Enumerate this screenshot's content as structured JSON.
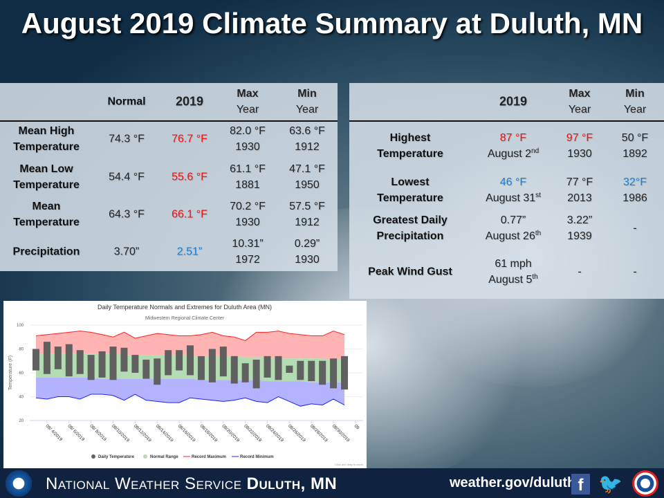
{
  "title": "August 2019 Climate Summary at Duluth, MN",
  "colors": {
    "record_high": "#f01010",
    "record_low": "#1a7fd6",
    "footer": "#0f2340"
  },
  "monthly_table": {
    "headers": {
      "normal": "Normal",
      "year": "2019",
      "max": "Max",
      "min": "Min",
      "year_sub": "Year"
    },
    "rows": [
      {
        "label1": "Mean High",
        "label2": "Temperature",
        "normal": "74.3 °F",
        "value": "76.7 °F",
        "value_color": "red",
        "max": "82.0 °F",
        "max_year": "1930",
        "min": "63.6 °F",
        "min_year": "1912"
      },
      {
        "label1": "Mean Low",
        "label2": "Temperature",
        "normal": "54.4 °F",
        "value": "55.6 °F",
        "value_color": "red",
        "max": "61.1 °F",
        "max_year": "1881",
        "min": "47.1 °F",
        "min_year": "1950"
      },
      {
        "label1": "Mean",
        "label2": "Temperature",
        "normal": "64.3 °F",
        "value": "66.1 °F",
        "value_color": "red",
        "max": "70.2 °F",
        "max_year": "1930",
        "min": "57.5 °F",
        "min_year": "1912"
      },
      {
        "label1": "Precipitation",
        "label2": "",
        "normal": "3.70”",
        "value": "2.51”",
        "value_color": "blue",
        "max": "10.31”",
        "max_year": "1972",
        "min": "0.29”",
        "min_year": "1930"
      }
    ]
  },
  "extremes_table": {
    "headers": {
      "year": "2019",
      "max": "Max",
      "min": "Min",
      "year_sub": "Year"
    },
    "rows": [
      {
        "label1": "Highest",
        "label2": "Temperature",
        "value": "87 °F",
        "date": "August 2",
        "sup": "nd",
        "max": "97 °F",
        "max_year": "1930",
        "min": "50 °F",
        "min_year": "1892"
      },
      {
        "label1": "Lowest",
        "label2": "Temperature",
        "value": "46 °F",
        "date": "August 31",
        "sup": "st",
        "max": "77 °F",
        "max_year": "2013",
        "min": "32°F",
        "min_year": "1986"
      },
      {
        "label1": "Greatest Daily",
        "label2": "Precipitation",
        "value": "0.77”",
        "date": "August 26",
        "sup": "th",
        "max": "3.22”",
        "max_year": "1939",
        "min": "-"
      },
      {
        "label1": "Peak Wind Gust",
        "value": "61 mph",
        "date": "August 5",
        "sup": "th",
        "max": "-",
        "min": "-"
      }
    ]
  },
  "chart_data": {
    "type": "bar",
    "title": "Daily Temperature Normals and Extremes for Duluth Area (MN)",
    "subtitle": "Midwestern Regional Climate Center",
    "ylabel": "Temperature (F)",
    "ylim": [
      20,
      100
    ],
    "yticks": [
      20,
      40,
      60,
      80,
      100
    ],
    "xticks": [
      "08/ 4/2019",
      "08/ 6/2019",
      "08/ 8/2019",
      "08/10/2019",
      "08/12/2019",
      "08/14/2019",
      "08/16/2019",
      "08/18/2019",
      "08/20/2019",
      "08/22/2019",
      "08/24/2019",
      "08/26/2019",
      "08/28/2019",
      "08/30/2019",
      "09"
    ],
    "dates": [
      "08/3",
      "08/4",
      "08/5",
      "08/6",
      "08/7",
      "08/8",
      "08/9",
      "08/10",
      "08/11",
      "08/12",
      "08/13",
      "08/14",
      "08/15",
      "08/16",
      "08/17",
      "08/18",
      "08/19",
      "08/20",
      "08/21",
      "08/22",
      "08/23",
      "08/24",
      "08/25",
      "08/26",
      "08/27",
      "08/28",
      "08/29",
      "08/30",
      "08/31"
    ],
    "daily_high": [
      80,
      86,
      82,
      84,
      79,
      75,
      78,
      82,
      81,
      75,
      71,
      72,
      79,
      79,
      83,
      74,
      80,
      82,
      74,
      68,
      71,
      74,
      74,
      66,
      70,
      70,
      70,
      72,
      74
    ],
    "daily_low": [
      62,
      59,
      63,
      57,
      59,
      54,
      56,
      54,
      61,
      60,
      55,
      50,
      58,
      62,
      58,
      54,
      52,
      57,
      51,
      52,
      47,
      56,
      54,
      60,
      54,
      53,
      50,
      47,
      46
    ],
    "normal_high": [
      76,
      76,
      76,
      76,
      76,
      76,
      76,
      76,
      75,
      75,
      75,
      75,
      75,
      75,
      74,
      74,
      74,
      74,
      74,
      73,
      73,
      73,
      72,
      72,
      72,
      72,
      72,
      71,
      71
    ],
    "normal_low": [
      56,
      56,
      56,
      56,
      56,
      56,
      55,
      55,
      55,
      55,
      55,
      55,
      55,
      55,
      55,
      54,
      54,
      54,
      54,
      54,
      54,
      53,
      53,
      53,
      53,
      52,
      52,
      52,
      52
    ],
    "record_max": [
      91,
      92,
      93,
      94,
      95,
      94,
      92,
      90,
      94,
      89,
      91,
      93,
      92,
      91,
      91,
      92,
      94,
      91,
      90,
      87,
      94,
      94,
      95,
      93,
      92,
      91,
      91,
      95,
      92
    ],
    "record_min": [
      39,
      38,
      40,
      40,
      38,
      42,
      42,
      41,
      37,
      42,
      37,
      36,
      35,
      35,
      39,
      38,
      37,
      36,
      37,
      39,
      36,
      35,
      40,
      36,
      32,
      34,
      33,
      38,
      33
    ],
    "legend": [
      "Daily Temperature",
      "Normal Range",
      "Record Maximum",
      "Record Minimum"
    ],
    "legend_position": "bottom",
    "colors": {
      "daily": "#606060",
      "normal": "#b3dcb3",
      "record_max": "#ff2020",
      "record_max_fill": "#ffb3b3",
      "record_min": "#2020ff",
      "record_min_fill": "#b3b3ff"
    },
    "note": "Click and drag to zoom",
    "grid": true
  },
  "footer": {
    "org_light": "National Weather Service",
    "org_bold": "Duluth, MN",
    "url": "weather.gov/duluth",
    "icons": [
      "noaa-logo",
      "facebook-icon",
      "twitter-icon",
      "nws-logo"
    ]
  }
}
